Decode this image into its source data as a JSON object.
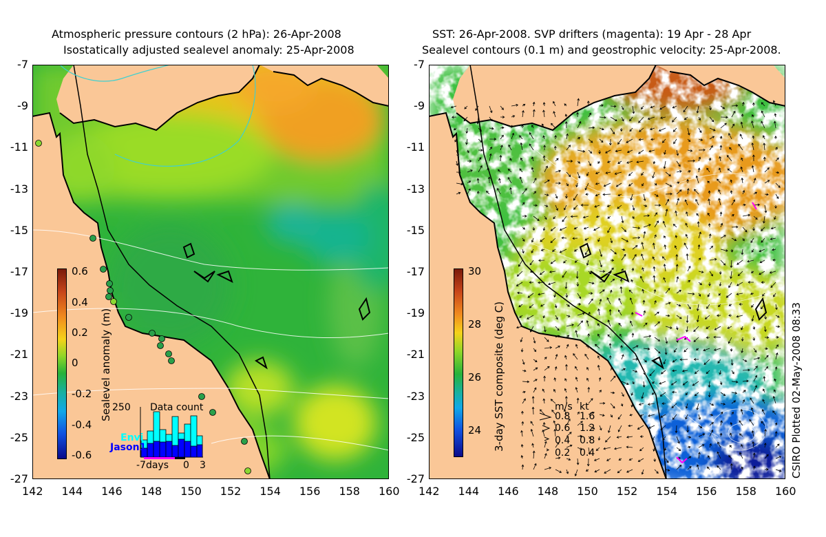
{
  "left_panel": {
    "title_line1": "Atmospheric pressure contours (2 hPa): 26-Apr-2008",
    "title_line2": "Isostatically adjusted sealevel anomaly: 25-Apr-2008",
    "colorbar_label": "Sealevel anomaly (m)",
    "colorbar_ticks": [
      "0.6",
      "0.4",
      "0.2",
      "0",
      "-0.2",
      "-0.4",
      "-0.6"
    ],
    "colorbar_range": [
      -0.6,
      0.6
    ],
    "inset": {
      "title": "Data count",
      "ymax_label": "250",
      "series1": "Envi",
      "series2": "Jason1",
      "x_labels": [
        "-7days",
        "0",
        "3"
      ],
      "series1_color": "#00ffff",
      "series2_color": "#0000ff"
    }
  },
  "right_panel": {
    "title_line1": "SST: 26-Apr-2008. SVP drifters (magenta): 19 Apr - 28 Apr",
    "title_line2": "Sealevel contours (0.1 m) and geostrophic velocity: 25-Apr-2008.",
    "colorbar_label": "3-day SST composite (deg C)",
    "colorbar_ticks": [
      "30",
      "28",
      "26",
      "24"
    ],
    "colorbar_range": [
      23,
      30
    ],
    "velocity_legend": {
      "header_ms": "m/s",
      "header_kt": "kt",
      "rows": [
        {
          "ms": "0.8",
          "kt": "1.6"
        },
        {
          "ms": "0.6",
          "kt": "1.2"
        },
        {
          "ms": "0.4",
          "kt": "0.8"
        },
        {
          "ms": "0.2",
          "kt": "0.4"
        }
      ]
    },
    "credit": "CSIRO Plotted 02-May-2008 08:33"
  },
  "axes": {
    "y_ticks": [
      "-7",
      "-9",
      "-11",
      "-13",
      "-15",
      "-17",
      "-19",
      "-21",
      "-23",
      "-25",
      "-27"
    ],
    "x_ticks": [
      "142",
      "144",
      "146",
      "148",
      "150",
      "152",
      "154",
      "156",
      "158",
      "160"
    ],
    "lon_range": [
      142,
      160
    ],
    "lat_range": [
      -27,
      -7
    ]
  },
  "colors": {
    "land": "#fac797",
    "coastline": "#000000"
  }
}
